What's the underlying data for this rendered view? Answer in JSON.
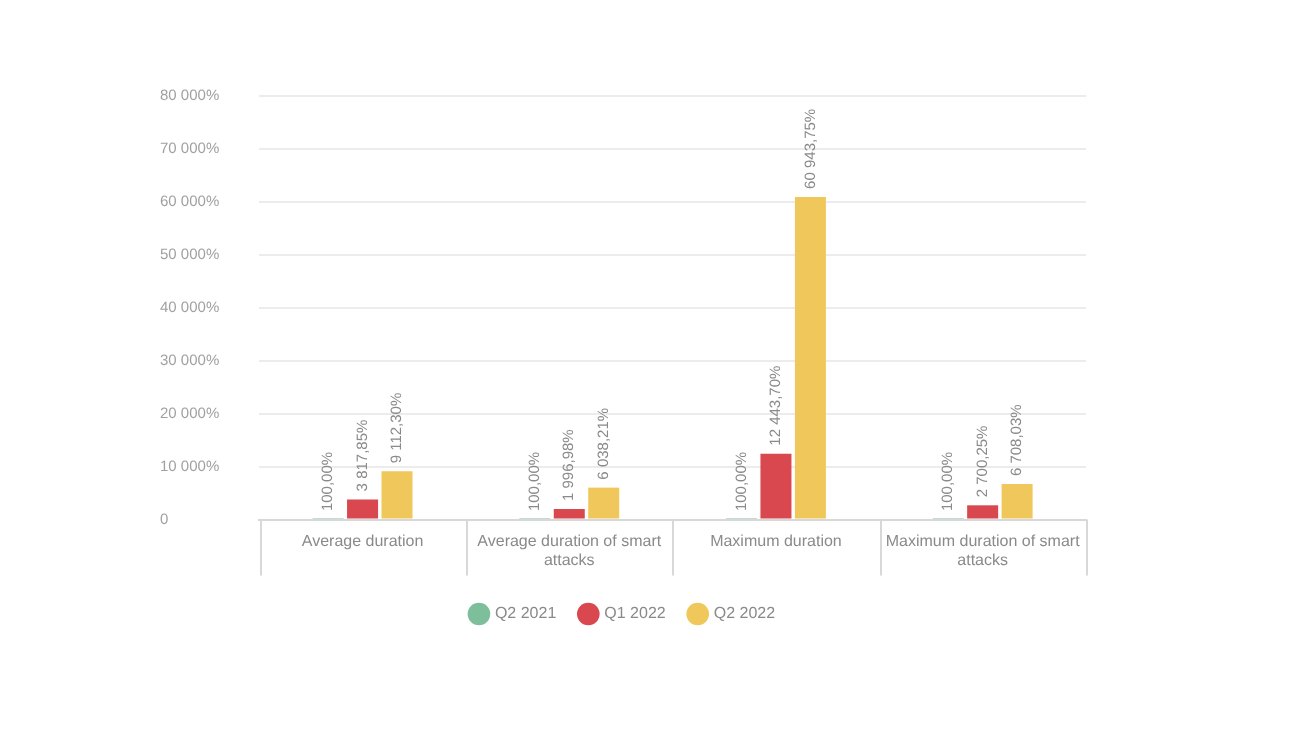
{
  "chart_data": {
    "type": "bar",
    "categories": [
      "Average duration",
      "Average duration of smart attacks",
      "Maximum duration",
      "Maximum duration of smart attacks"
    ],
    "series": [
      {
        "name": "Q2 2021",
        "color": "#7dbf9a",
        "values": [
          100,
          100,
          100,
          100
        ],
        "value_labels": [
          "100,00%",
          "100,00%",
          "100,00%",
          "100,00%"
        ]
      },
      {
        "name": "Q1 2022",
        "color": "#d9474f",
        "values": [
          3817.85,
          1996.98,
          12443.7,
          2700.25
        ],
        "value_labels": [
          "3 817,85%",
          "1 996,98%",
          "12 443,70%",
          "2 700,25%"
        ]
      },
      {
        "name": "Q2 2022",
        "color": "#f0c75a",
        "values": [
          9112.3,
          6038.21,
          60943.75,
          6708.03
        ],
        "value_labels": [
          "9 112,30%",
          "6 038,21%",
          "60 943,75%",
          "6 708,03%"
        ]
      }
    ],
    "ylim": [
      0,
      80000
    ],
    "yticks": [
      0,
      {
        "value": 10000,
        "label": "10 000%"
      },
      {
        "value": 20000,
        "label": "20 000%"
      },
      {
        "value": 30000,
        "label": "30 000%"
      },
      {
        "value": 40000,
        "label": "40 000%"
      },
      {
        "value": 50000,
        "label": "50 000%"
      },
      {
        "value": 60000,
        "label": "60 000%"
      },
      {
        "value": 70000,
        "label": "70 000%"
      },
      {
        "value": 80000,
        "label": "80 000%"
      }
    ],
    "grid": "y",
    "legend": "bottom"
  }
}
